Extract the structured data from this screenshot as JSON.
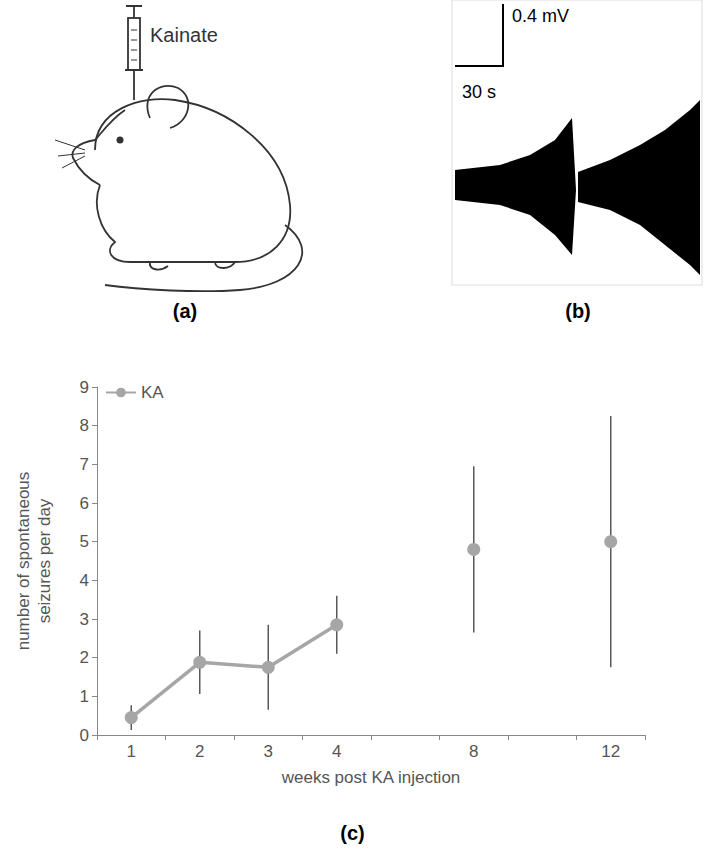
{
  "panels": {
    "a": {
      "label": "(a)",
      "annotation": "Kainate"
    },
    "b": {
      "label": "(b)",
      "scale_bar": {
        "vertical": "0.4 mV",
        "horizontal": "30 s"
      }
    },
    "c": {
      "label": "(c)"
    }
  },
  "chart_data": {
    "type": "line",
    "categories": [
      "1",
      "2",
      "3",
      "4",
      null,
      "8",
      null,
      "12"
    ],
    "series": [
      {
        "name": "KA",
        "color": "#a6a6a6",
        "marker": "circle",
        "values": [
          0.45,
          1.88,
          1.75,
          2.85,
          null,
          4.8,
          null,
          5.0
        ],
        "errors": [
          0.32,
          0.82,
          1.1,
          0.75,
          null,
          2.15,
          null,
          3.25
        ]
      }
    ],
    "x_label": "weeks post KA injection",
    "y_label": "number of spontaneous seizures per day",
    "ylim": [
      0,
      9
    ],
    "yticks": [
      0,
      1,
      2,
      3,
      4,
      5,
      6,
      7,
      8,
      9
    ],
    "grid": false,
    "legend": "upper left"
  }
}
